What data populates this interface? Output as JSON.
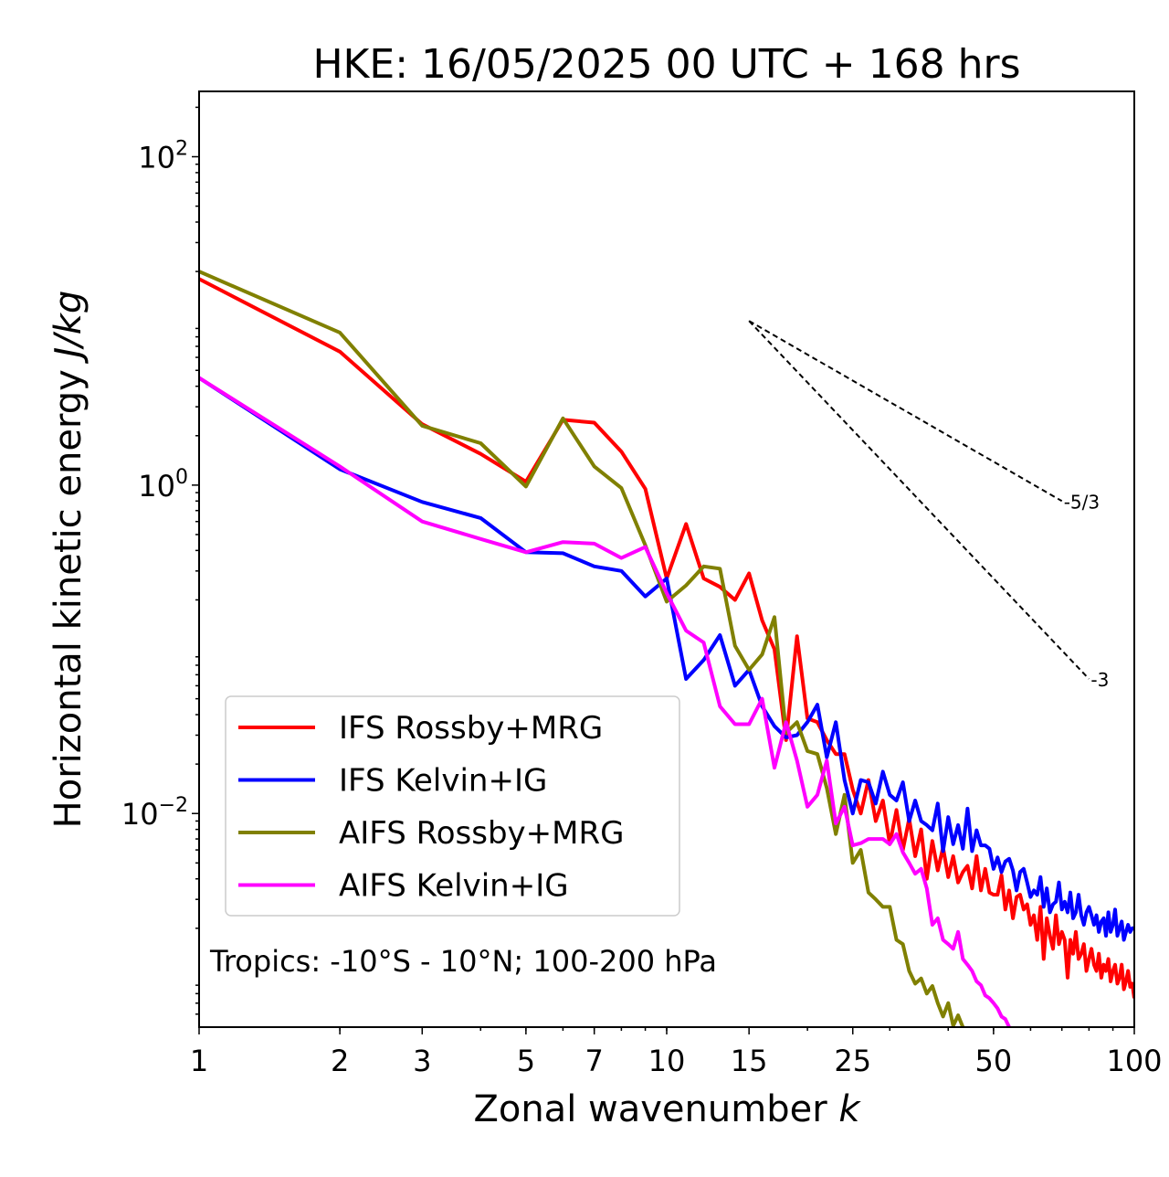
{
  "chart_data": {
    "type": "line",
    "title": "HKE: 16/05/2025 00 UTC + 168 hrs",
    "xlabel": "Zonal wavenumber",
    "xlabel_var": "k",
    "ylabel": "Horizontal kinetic energy",
    "ylabel_unit": "J/kg",
    "xscale": "log",
    "yscale": "log",
    "xlim": [
      1,
      100
    ],
    "ylim": [
      0.0005,
      250
    ],
    "x_ticks": [
      1,
      2,
      3,
      5,
      7,
      10,
      15,
      25,
      50,
      100
    ],
    "x_tick_labels": [
      "1",
      "2",
      "3",
      "5",
      "7",
      "10",
      "15",
      "25",
      "50",
      "100"
    ],
    "y_ticks": [
      0.01,
      1,
      100
    ],
    "y_tick_labels": [
      [
        "10",
        "−2"
      ],
      [
        "10",
        "0"
      ],
      [
        "10",
        "2"
      ]
    ],
    "grid": false,
    "legend_position": "lower-left",
    "annotation": "Tropics: -10°S - 10°N; 100-200 hPa",
    "reference_lines": [
      {
        "label": "-5/3",
        "x": [
          15,
          70
        ],
        "y": [
          10,
          0.8
        ]
      },
      {
        "label": "-3",
        "x": [
          15,
          80
        ],
        "y": [
          10,
          0.066
        ]
      }
    ],
    "series": [
      {
        "name": "IFS Rossby+MRG",
        "color": "#ff0000",
        "x": [
          1,
          2,
          3,
          4,
          5,
          6,
          7,
          8,
          9,
          10,
          11,
          12,
          13,
          14,
          15,
          16,
          17,
          18,
          19,
          20,
          21,
          22,
          23,
          24,
          25,
          26,
          27,
          28,
          29,
          30,
          31,
          32,
          33,
          34,
          35,
          36,
          37,
          38,
          39,
          40,
          41,
          42,
          43,
          44,
          45,
          46,
          47,
          48,
          49,
          50,
          51,
          52,
          53,
          54,
          55,
          56,
          57,
          58,
          59,
          60,
          61,
          62,
          63,
          64,
          65,
          66,
          67,
          68,
          69,
          70,
          71,
          72,
          73,
          74,
          75,
          76,
          77,
          78,
          79,
          80,
          81,
          82,
          83,
          84,
          85,
          86,
          87,
          88,
          89,
          90,
          91,
          92,
          93,
          94,
          95,
          96,
          97,
          98,
          99,
          100
        ],
        "y": [
          18.0,
          6.5,
          2.35,
          1.55,
          1.05,
          2.5,
          2.4,
          1.6,
          0.95,
          0.27,
          0.58,
          0.27,
          0.24,
          0.2,
          0.29,
          0.15,
          0.1,
          0.028,
          0.12,
          0.038,
          0.036,
          0.028,
          0.023,
          0.023,
          0.014,
          0.01,
          0.016,
          0.009,
          0.012,
          0.0065,
          0.0105,
          0.006,
          0.0093,
          0.0055,
          0.008,
          0.004,
          0.0068,
          0.0045,
          0.0062,
          0.0041,
          0.0055,
          0.0038,
          0.0044,
          0.0048,
          0.0035,
          0.0055,
          0.0034,
          0.0046,
          0.0033,
          0.0032,
          0.0032,
          0.0042,
          0.0026,
          0.0034,
          0.0023,
          0.0031,
          0.0032,
          0.0026,
          0.0028,
          0.0021,
          0.0024,
          0.0017,
          0.0027,
          0.0013,
          0.0023,
          0.0018,
          0.0015,
          0.0024,
          0.0016,
          0.0019,
          0.0017,
          0.001,
          0.0017,
          0.0014,
          0.0019,
          0.0013,
          0.0014,
          0.0016,
          0.0011,
          0.0013,
          0.0015,
          0.0012,
          0.0011,
          0.0014,
          0.001,
          0.0012,
          0.0011,
          0.0013,
          0.00095,
          0.0011,
          0.0012,
          0.00092,
          0.001,
          0.0012,
          0.00085,
          0.00095,
          0.0011,
          0.00088,
          0.00092,
          0.00075
        ]
      },
      {
        "name": "IFS Kelvin+IG",
        "color": "#0000ff",
        "x": [
          1,
          2,
          3,
          4,
          5,
          6,
          7,
          8,
          9,
          10,
          11,
          12,
          13,
          14,
          15,
          16,
          17,
          18,
          19,
          20,
          21,
          22,
          23,
          24,
          25,
          26,
          27,
          28,
          29,
          30,
          31,
          32,
          33,
          34,
          35,
          36,
          37,
          38,
          39,
          40,
          41,
          42,
          43,
          44,
          45,
          46,
          47,
          48,
          49,
          50,
          51,
          52,
          53,
          54,
          55,
          56,
          57,
          58,
          59,
          60,
          61,
          62,
          63,
          64,
          65,
          66,
          67,
          68,
          69,
          70,
          71,
          72,
          73,
          74,
          75,
          76,
          77,
          78,
          79,
          80,
          81,
          82,
          83,
          84,
          85,
          86,
          87,
          88,
          89,
          90,
          91,
          92,
          93,
          94,
          95,
          96,
          97,
          98,
          99,
          100
        ],
        "y": [
          4.5,
          1.25,
          0.79,
          0.63,
          0.39,
          0.385,
          0.32,
          0.3,
          0.21,
          0.27,
          0.066,
          0.086,
          0.122,
          0.06,
          0.075,
          0.045,
          0.034,
          0.029,
          0.03,
          0.036,
          0.046,
          0.022,
          0.036,
          0.016,
          0.01,
          0.016,
          0.0155,
          0.0115,
          0.018,
          0.013,
          0.012,
          0.0155,
          0.009,
          0.012,
          0.009,
          0.0085,
          0.0079,
          0.0115,
          0.0059,
          0.0095,
          0.0065,
          0.0085,
          0.0061,
          0.0107,
          0.0059,
          0.0079,
          0.0064,
          0.0064,
          0.0061,
          0.0046,
          0.0054,
          0.0044,
          0.0051,
          0.0053,
          0.0045,
          0.0034,
          0.0044,
          0.0046,
          0.0038,
          0.0031,
          0.0034,
          0.0032,
          0.0041,
          0.0027,
          0.0035,
          0.0025,
          0.0028,
          0.0029,
          0.0038,
          0.0026,
          0.0029,
          0.0025,
          0.0033,
          0.0023,
          0.0025,
          0.0032,
          0.0024,
          0.0021,
          0.0025,
          0.0027,
          0.0024,
          0.0021,
          0.0024,
          0.0019,
          0.0022,
          0.0023,
          0.0018,
          0.0025,
          0.0019,
          0.0021,
          0.0026,
          0.0018,
          0.002,
          0.0022,
          0.0017,
          0.0019,
          0.0021,
          0.0019,
          0.002,
          0.002
        ]
      },
      {
        "name": "AIFS Rossby+MRG",
        "color": "#808000",
        "x": [
          1,
          2,
          3,
          4,
          5,
          6,
          7,
          8,
          9,
          10,
          11,
          12,
          13,
          14,
          15,
          16,
          17,
          18,
          19,
          20,
          21,
          22,
          23,
          24,
          25,
          26,
          27,
          28,
          29,
          30,
          31,
          32,
          33,
          34,
          35,
          36,
          37,
          38,
          39,
          40,
          41,
          42,
          43,
          44,
          45
        ],
        "y": [
          20.0,
          8.5,
          2.3,
          1.8,
          0.98,
          2.55,
          1.3,
          0.96,
          0.43,
          0.195,
          0.245,
          0.32,
          0.31,
          0.105,
          0.075,
          0.093,
          0.157,
          0.031,
          0.036,
          0.024,
          0.023,
          0.0143,
          0.0075,
          0.013,
          0.005,
          0.006,
          0.0033,
          0.003,
          0.0027,
          0.0027,
          0.0017,
          0.0016,
          0.0011,
          0.00092,
          0.00099,
          0.0008,
          0.00089,
          0.0007,
          0.00058,
          0.0007,
          0.00051,
          0.00059,
          0.0005,
          0.00048,
          0.00045
        ]
      },
      {
        "name": "AIFS Kelvin+IG",
        "color": "#ff00ff",
        "x": [
          1,
          2,
          3,
          4,
          5,
          6,
          7,
          8,
          9,
          10,
          11,
          12,
          13,
          14,
          15,
          16,
          17,
          18,
          19,
          20,
          21,
          22,
          23,
          24,
          25,
          26,
          27,
          28,
          29,
          30,
          31,
          32,
          33,
          34,
          35,
          36,
          37,
          38,
          39,
          40,
          41,
          42,
          43,
          44,
          45,
          46,
          47,
          48,
          49,
          50,
          51,
          52,
          53,
          54,
          55
        ],
        "y": [
          4.5,
          1.3,
          0.6,
          0.47,
          0.39,
          0.45,
          0.44,
          0.36,
          0.42,
          0.22,
          0.13,
          0.11,
          0.045,
          0.035,
          0.035,
          0.05,
          0.019,
          0.036,
          0.021,
          0.011,
          0.013,
          0.021,
          0.0087,
          0.011,
          0.0064,
          0.0066,
          0.007,
          0.007,
          0.007,
          0.0065,
          0.0075,
          0.0058,
          0.005,
          0.0043,
          0.0046,
          0.0035,
          0.0021,
          0.0023,
          0.0017,
          0.0016,
          0.0015,
          0.0019,
          0.0013,
          0.0012,
          0.0011,
          0.00095,
          0.0009,
          0.00078,
          0.00075,
          0.0007,
          0.00065,
          0.00058,
          0.00056,
          0.0005,
          0.00045
        ]
      }
    ]
  }
}
